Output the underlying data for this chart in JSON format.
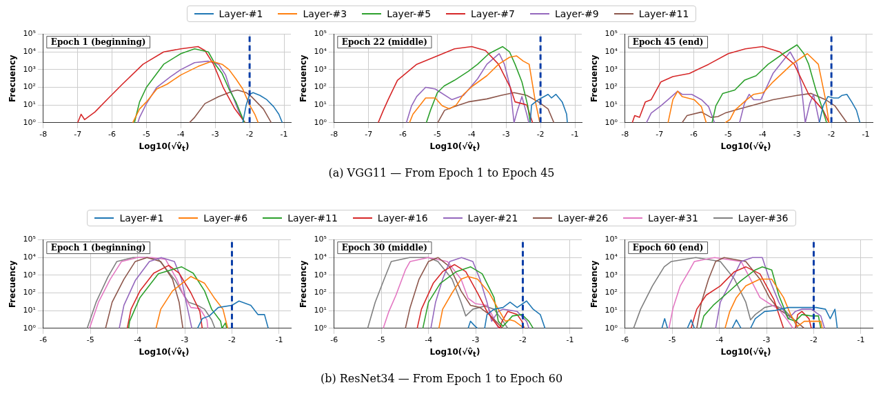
{
  "chart_data": [
    {
      "type": "line",
      "title": "Epoch 1 (beginning)",
      "xlabel": "Log10(√v̂$_{t}$)",
      "ylabel": "Frecuency",
      "log": true,
      "grid": true,
      "xlim": [
        -8,
        -0.8
      ],
      "xticks": [
        -8,
        -7,
        -6,
        -5,
        -4,
        -3,
        -2,
        -1
      ],
      "ylim": [
        1,
        100000
      ],
      "yticks": [
        {
          "value": 1,
          "label": "10⁰"
        },
        {
          "value": 10,
          "label": "10¹"
        },
        {
          "value": 100,
          "label": "10²"
        },
        {
          "value": 1000,
          "label": "10³"
        },
        {
          "value": 10000,
          "label": "10⁴"
        },
        {
          "value": 100000,
          "label": "10⁵"
        }
      ],
      "ref_lines": [
        {
          "axis": "x",
          "value": -2,
          "color": "#0a3ea8",
          "line_style": "dashed"
        }
      ],
      "annotations": [
        "(a) VGG11 — From Epoch 1 to Epoch 45"
      ],
      "series": [
        {
          "color": "#1f77b4",
          "x": [
            -2.2,
            -2.1,
            -2.0,
            -1.9,
            -1.7,
            -1.5,
            -1.3,
            -1.15,
            -1.05
          ],
          "values": [
            1,
            10,
            40,
            50,
            35,
            20,
            8,
            3,
            1
          ]
        },
        {
          "color": "#ff7f0e",
          "x": [
            -5.4,
            -5.2,
            -5.0,
            -4.7,
            -4.4,
            -4.0,
            -3.5,
            -3.1,
            -2.8,
            -2.6,
            -2.4,
            -2.2,
            -2.0,
            -1.85,
            -1.75
          ],
          "values": [
            1,
            6,
            15,
            80,
            150,
            500,
            1500,
            3000,
            2000,
            1000,
            300,
            80,
            10,
            3,
            1
          ]
        },
        {
          "color": "#2ca02c",
          "x": [
            -5.35,
            -5.2,
            -5.0,
            -4.7,
            -4.5,
            -4.0,
            -3.6,
            -3.2,
            -3.0,
            -2.8,
            -2.6,
            -2.4,
            -2.25,
            -2.15
          ],
          "values": [
            1,
            15,
            100,
            600,
            2000,
            8000,
            15000,
            10000,
            2000,
            600,
            80,
            15,
            3,
            1
          ]
        },
        {
          "color": "#d62728",
          "x": [
            -7.0,
            -6.9,
            -6.8,
            -6.5,
            -6.1,
            -5.7,
            -5.1,
            -4.5,
            -4.0,
            -3.5,
            -3.3,
            -3.05,
            -2.77,
            -2.43,
            -2.13
          ],
          "values": [
            1,
            3,
            1.5,
            4,
            25,
            150,
            2000,
            10000,
            15000,
            20000,
            12000,
            2000,
            100,
            6,
            1
          ]
        },
        {
          "color": "#9467bd",
          "x": [
            -5.25,
            -5.2,
            -5.0,
            -4.7,
            -4.3,
            -4.0,
            -3.6,
            -3.2,
            -2.9,
            -2.7,
            -2.57,
            -2.33,
            -2.16
          ],
          "values": [
            1,
            2,
            12,
            100,
            400,
            1000,
            2500,
            3000,
            2000,
            500,
            80,
            5,
            1
          ]
        },
        {
          "color": "#8c564b",
          "x": [
            -3.75,
            -3.6,
            -3.3,
            -2.9,
            -2.5,
            -2.35,
            -2.1,
            -1.95,
            -1.6,
            -1.37
          ],
          "values": [
            1,
            2,
            12,
            30,
            60,
            70,
            50,
            30,
            6,
            1
          ]
        }
      ]
    },
    {
      "type": "line",
      "title": "Epoch 22 (middle)",
      "xlabel": "Log10(√v̂$_{t}$)",
      "ylabel": "Frecuency",
      "legend": "top",
      "log": true,
      "grid": true,
      "xlim": [
        -8,
        -0.8
      ],
      "xticks": [
        -8,
        -7,
        -6,
        -5,
        -4,
        -3,
        -2,
        -1
      ],
      "ylim": [
        1,
        100000
      ],
      "yticks": [
        {
          "value": 1,
          "label": "10⁰"
        },
        {
          "value": 10,
          "label": "10¹"
        },
        {
          "value": 100,
          "label": "10²"
        },
        {
          "value": 1000,
          "label": "10³"
        },
        {
          "value": 10000,
          "label": "10⁴"
        },
        {
          "value": 100000,
          "label": "10⁵"
        }
      ],
      "ref_lines": [
        {
          "axis": "x",
          "value": -2,
          "color": "#0a3ea8",
          "line_style": "dashed"
        }
      ],
      "series": [
        {
          "name": "Layer-#1",
          "color": "#1f77b4",
          "x": [
            -2.3,
            -2.26,
            -2.06,
            -1.78,
            -1.68,
            -1.55,
            -1.37,
            -1.24,
            -1.22
          ],
          "values": [
            1,
            10,
            20,
            40,
            25,
            40,
            15,
            3,
            1
          ]
        },
        {
          "name": "Layer-#3",
          "color": "#ff7f0e",
          "x": [
            -5.81,
            -5.71,
            -5.54,
            -5.34,
            -5.06,
            -4.86,
            -4.65,
            -4.45,
            -4.24,
            -3.97,
            -3.56,
            -3.22,
            -2.9,
            -2.7,
            -2.5,
            -2.33,
            -2.16,
            -2.02
          ],
          "values": [
            1,
            3,
            8,
            25,
            25,
            9,
            6,
            10,
            40,
            120,
            450,
            2000,
            5000,
            6000,
            3000,
            2000,
            20,
            1
          ]
        },
        {
          "name": "Layer-#5",
          "color": "#2ca02c",
          "x": [
            -5.32,
            -5.2,
            -5.0,
            -4.8,
            -4.5,
            -4.1,
            -3.83,
            -3.5,
            -3.1,
            -2.9,
            -2.74,
            -2.54,
            -2.37,
            -2.3
          ],
          "values": [
            1,
            5,
            50,
            120,
            250,
            800,
            2000,
            8000,
            20000,
            10000,
            2000,
            200,
            9,
            1
          ]
        },
        {
          "name": "Layer-#7",
          "color": "#d62728",
          "x": [
            -6.72,
            -6.57,
            -6.43,
            -6.16,
            -5.6,
            -5.0,
            -4.5,
            -4.0,
            -3.6,
            -3.22,
            -2.88,
            -2.74,
            -2.54,
            -2.4,
            -2.23
          ],
          "values": [
            1,
            5,
            20,
            250,
            2000,
            6000,
            15000,
            20000,
            12000,
            2000,
            100,
            15,
            12,
            10,
            1
          ]
        },
        {
          "name": "Layer-#9",
          "color": "#9467bd",
          "x": [
            -5.9,
            -5.75,
            -5.6,
            -5.34,
            -5.06,
            -4.58,
            -4.24,
            -3.83,
            -3.56,
            -3.2,
            -3.05,
            -2.88,
            -2.77,
            -2.67,
            -2.54,
            -2.4,
            -2.34
          ],
          "values": [
            1,
            9,
            30,
            100,
            80,
            20,
            35,
            300,
            2000,
            8000,
            2000,
            100,
            1,
            5,
            30,
            3,
            1
          ]
        },
        {
          "name": "Layer-#11",
          "color": "#8c564b",
          "x": [
            -4.99,
            -4.79,
            -4.52,
            -4.1,
            -3.56,
            -3.15,
            -2.77,
            -2.4,
            -2.06,
            -1.78,
            -1.61
          ],
          "values": [
            1,
            5,
            8,
            15,
            22,
            35,
            50,
            35,
            15,
            6,
            1
          ]
        }
      ]
    },
    {
      "type": "line",
      "title": "Epoch 45 (end)",
      "xlabel": "Log10(√v̂$_{t}$)",
      "ylabel": "Frecuency",
      "log": true,
      "grid": true,
      "xlim": [
        -8,
        -0.8
      ],
      "xticks": [
        -8,
        -7,
        -6,
        -5,
        -4,
        -3,
        -2,
        -1
      ],
      "ylim": [
        1,
        100000
      ],
      "yticks": [
        {
          "value": 1,
          "label": "10⁰"
        },
        {
          "value": 10,
          "label": "10¹"
        },
        {
          "value": 100,
          "label": "10²"
        },
        {
          "value": 1000,
          "label": "10³"
        },
        {
          "value": 10000,
          "label": "10⁴"
        },
        {
          "value": 100000,
          "label": "10⁵"
        }
      ],
      "ref_lines": [
        {
          "axis": "x",
          "value": -2,
          "color": "#0a3ea8",
          "line_style": "dashed"
        }
      ],
      "series": [
        {
          "color": "#1f77b4",
          "x": [
            -2.35,
            -2.24,
            -2.1,
            -1.93,
            -1.79,
            -1.69,
            -1.55,
            -1.41,
            -1.27,
            -1.17
          ],
          "values": [
            1,
            9,
            30,
            25,
            25,
            35,
            40,
            15,
            5,
            1
          ]
        },
        {
          "color": "#ff7f0e",
          "x": [
            -6.75,
            -6.61,
            -6.47,
            -6.34,
            -5.99,
            -5.78,
            -5.64,
            -5.4,
            -5.09,
            -4.95,
            -4.81,
            -4.46,
            -4.26,
            -3.98,
            -3.7,
            -3.15,
            -2.7,
            -2.38,
            -2.17,
            -2.07
          ],
          "values": [
            1,
            20,
            60,
            30,
            20,
            8,
            1,
            null,
            1,
            1.5,
            5,
            20,
            40,
            50,
            200,
            2000,
            8000,
            2000,
            20,
            1
          ]
        },
        {
          "color": "#2ca02c",
          "x": [
            -5.47,
            -5.36,
            -5.16,
            -4.81,
            -4.53,
            -4.19,
            -3.84,
            -3.4,
            -3.0,
            -2.8,
            -2.66,
            -2.45,
            -2.31,
            -2.14
          ],
          "values": [
            1,
            9,
            45,
            70,
            250,
            450,
            2000,
            8000,
            25000,
            8000,
            2000,
            70,
            12,
            1
          ]
        },
        {
          "color": "#d62728",
          "x": [
            -7.79,
            -7.72,
            -7.58,
            -7.41,
            -7.24,
            -6.96,
            -6.61,
            -6.13,
            -5.57,
            -5.0,
            -4.5,
            -4.0,
            -3.5,
            -3.08,
            -2.66,
            -2.45,
            -2.24,
            -2.07
          ],
          "values": [
            1,
            2.5,
            2,
            15,
            20,
            200,
            400,
            600,
            2000,
            8000,
            15000,
            20000,
            10000,
            2000,
            40,
            15,
            5,
            1
          ]
        },
        {
          "color": "#9467bd",
          "x": [
            -7.38,
            -7.24,
            -6.96,
            -6.75,
            -6.47,
            -6.34,
            -6.06,
            -5.78,
            -5.57,
            -5.4,
            -5.0,
            -4.67,
            -4.53,
            -4.39,
            -4.26,
            -4.05,
            -3.7,
            -3.49,
            -3.2,
            -3.0,
            -2.87,
            -2.76,
            -2.63,
            -2.52,
            -2.38,
            -2.35
          ],
          "values": [
            1,
            3.5,
            9,
            20,
            60,
            40,
            40,
            20,
            8,
            1,
            null,
            1,
            12,
            40,
            20,
            20,
            600,
            2000,
            10000,
            2000,
            100,
            1,
            12,
            40,
            2,
            1
          ]
        },
        {
          "color": "#8c564b",
          "x": [
            -6.34,
            -6.2,
            -5.78,
            -5.5,
            -5.3,
            -5.09,
            -4.67,
            -4.26,
            -3.7,
            -3.0,
            -2.59,
            -2.17,
            -1.9,
            -1.55
          ],
          "values": [
            1,
            2.5,
            4,
            2,
            2.2,
            3.5,
            6,
            10,
            20,
            35,
            45,
            20,
            9,
            1
          ]
        }
      ]
    },
    {
      "type": "line",
      "title": "Epoch 1 (beginning)",
      "xlabel": "Log10(√v̂$_{t}$)",
      "ylabel": "Frecuency",
      "log": true,
      "grid": true,
      "xlim": [
        -6,
        -0.75
      ],
      "xticks": [
        -6,
        -5,
        -4,
        -3,
        -2,
        -1
      ],
      "ylim": [
        1,
        100000
      ],
      "yticks": [
        {
          "value": 1,
          "label": "10⁰"
        },
        {
          "value": 10,
          "label": "10¹"
        },
        {
          "value": 100,
          "label": "10²"
        },
        {
          "value": 1000,
          "label": "10³"
        },
        {
          "value": 10000,
          "label": "10⁴"
        },
        {
          "value": 100000,
          "label": "10⁵"
        }
      ],
      "ref_lines": [
        {
          "axis": "x",
          "value": -2,
          "color": "#0a3ea8",
          "line_style": "dashed"
        }
      ],
      "annotations": [
        "(b) ResNet34 — From Epoch 1 to Epoch 60"
      ],
      "series": [
        {
          "color": "#1f77b4",
          "x": [
            -2.73,
            -2.63,
            -2.48,
            -2.29,
            -2.0,
            -1.85,
            -1.6,
            -1.45,
            -1.31,
            -1.23
          ],
          "values": [
            1,
            3.5,
            5,
            15,
            20,
            35,
            20,
            6,
            6,
            1
          ]
        },
        {
          "color": "#ff7f0e",
          "x": [
            -3.61,
            -3.51,
            -3.26,
            -2.87,
            -2.58,
            -2.38,
            -2.19,
            -2.09
          ],
          "values": [
            1,
            12,
            130,
            850,
            350,
            55,
            12,
            1
          ]
        },
        {
          "color": "#2ca02c",
          "x": [
            -4.19,
            -4.17,
            -3.95,
            -3.56,
            -3.07,
            -2.82,
            -2.58,
            -2.43,
            -2.24,
            -2.21,
            -2.14,
            -2.11
          ],
          "values": [
            1,
            2.5,
            55,
            1200,
            3000,
            1300,
            130,
            12,
            2.5,
            1,
            2,
            1
          ]
        },
        {
          "color": "#d62728",
          "x": [
            -4.22,
            -4.14,
            -3.95,
            -3.66,
            -3.34,
            -3.12,
            -2.87,
            -2.68,
            -2.63
          ],
          "values": [
            1,
            12,
            130,
            1300,
            3600,
            1300,
            100,
            9,
            1
          ]
        },
        {
          "color": "#9467bd",
          "x": [
            -4.39,
            -4.29,
            -4.05,
            -3.75,
            -3.5,
            -3.22,
            -3.07,
            -2.97,
            -2.85
          ],
          "values": [
            1,
            20,
            500,
            6000,
            10000,
            6000,
            600,
            30,
            1
          ]
        },
        {
          "color": "#8c564b",
          "x": [
            -4.68,
            -4.54,
            -4.29,
            -4.05,
            -3.8,
            -3.51,
            -3.26,
            -3.12,
            -3.04
          ],
          "values": [
            1,
            30,
            600,
            6000,
            10000,
            6000,
            600,
            30,
            1
          ]
        },
        {
          "color": "#e377c2",
          "x": [
            -5.02,
            -4.83,
            -4.58,
            -4.34,
            -4.0,
            -3.7,
            -3.41,
            -3.17,
            -3.02,
            -2.87,
            -2.68,
            -2.53,
            -2.51
          ],
          "values": [
            1,
            30,
            600,
            6000,
            10000,
            10000,
            8000,
            600,
            70,
            15,
            13,
            3,
            1
          ]
        },
        {
          "color": "#7f7f7f",
          "x": [
            -5.07,
            -4.88,
            -4.63,
            -4.44,
            -4.1,
            -3.8,
            -3.56,
            -3.2,
            -3.07,
            -2.92,
            -2.73,
            -2.58,
            -2.43,
            -2.36
          ],
          "values": [
            1,
            30,
            800,
            6000,
            10000,
            10000,
            8000,
            500,
            120,
            30,
            20,
            12,
            3,
            1
          ]
        }
      ]
    },
    {
      "type": "line",
      "title": "Epoch 30 (middle)",
      "xlabel": "Log10(√v̂$_{t}$)",
      "ylabel": "Frecuency",
      "legend": "top",
      "log": true,
      "grid": true,
      "xlim": [
        -6,
        -0.75
      ],
      "xticks": [
        -6,
        -5,
        -4,
        -3,
        -2,
        -1
      ],
      "ylim": [
        1,
        100000
      ],
      "yticks": [
        {
          "value": 1,
          "label": "10⁰"
        },
        {
          "value": 10,
          "label": "10¹"
        },
        {
          "value": 100,
          "label": "10²"
        },
        {
          "value": 1000,
          "label": "10³"
        },
        {
          "value": 10000,
          "label": "10⁴"
        },
        {
          "value": 100000,
          "label": "10⁵"
        }
      ],
      "ref_lines": [
        {
          "axis": "x",
          "value": -2,
          "color": "#0a3ea8",
          "line_style": "dashed"
        }
      ],
      "series": [
        {
          "name": "Layer-#1",
          "color": "#1f77b4",
          "x": [
            -3.16,
            -3.11,
            -3.01,
            -2.96,
            -2.9,
            -2.81,
            -2.76,
            -2.61,
            -2.42,
            -2.27,
            -2.12,
            -1.92,
            -1.78,
            -1.63,
            -1.53
          ],
          "values": [
            1,
            2.5,
            1.3,
            1,
            null,
            1,
            6,
            12,
            15,
            30,
            15,
            35,
            12,
            6,
            1
          ]
        },
        {
          "name": "Layer-#6",
          "color": "#ff7f0e",
          "x": [
            -3.78,
            -3.7,
            -3.5,
            -3.31,
            -3.16,
            -2.96,
            -2.71,
            -2.52,
            -2.37,
            -2.27,
            -2.17,
            -2.07,
            -1.97
          ],
          "values": [
            1,
            12,
            100,
            600,
            850,
            600,
            100,
            12,
            2.5,
            3,
            2.5,
            1.6,
            1
          ]
        },
        {
          "name": "Layer-#11",
          "color": "#2ca02c",
          "x": [
            -4.12,
            -4.0,
            -3.75,
            -3.41,
            -3.11,
            -2.86,
            -2.61,
            -2.52,
            -2.42,
            -2.22,
            -2.02,
            -1.87,
            -1.78
          ],
          "values": [
            1,
            30,
            350,
            1600,
            3000,
            1200,
            55,
            2.5,
            1.3,
            5,
            6,
            2.5,
            1
          ]
        },
        {
          "name": "Layer-#16",
          "color": "#d62728",
          "x": [
            -4.24,
            -4.15,
            -3.9,
            -3.7,
            -3.45,
            -3.21,
            -2.96,
            -2.76,
            -2.61,
            -2.49,
            -2.44,
            -2.32,
            -2.12,
            -2.02,
            -1.97
          ],
          "values": [
            1,
            12,
            350,
            1600,
            4000,
            1600,
            100,
            9,
            2.5,
            1,
            2.5,
            9,
            6,
            2.5,
            1
          ]
        },
        {
          "name": "Layer-#21",
          "color": "#9467bd",
          "x": [
            -3.95,
            -3.85,
            -3.7,
            -3.55,
            -3.3,
            -3.06,
            -2.91,
            -2.76,
            -2.66,
            -2.52,
            -2.42,
            -2.12,
            -1.92,
            -1.87
          ],
          "values": [
            1,
            30,
            600,
            6000,
            10000,
            6000,
            600,
            30,
            2.5,
            9,
            12,
            9,
            2.5,
            1
          ]
        },
        {
          "name": "Layer-#26",
          "color": "#8c564b",
          "x": [
            -4.49,
            -4.39,
            -4.2,
            -4.0,
            -3.8,
            -3.55,
            -3.31,
            -3.11,
            -2.91,
            -2.71,
            -2.47,
            -2.42
          ],
          "values": [
            1,
            15,
            600,
            6000,
            10000,
            3000,
            130,
            20,
            15,
            6,
            1.3,
            1
          ]
        },
        {
          "name": "Layer-#31",
          "color": "#e377c2",
          "x": [
            -4.96,
            -4.84,
            -4.69,
            -4.49,
            -4.39,
            -4.0,
            -3.6,
            -3.31,
            -3.16,
            -3.01,
            -2.76,
            -2.61,
            -2.52
          ],
          "values": [
            1,
            9,
            75,
            2000,
            6000,
            10000,
            6000,
            600,
            50,
            25,
            20,
            3.5,
            1
          ]
        },
        {
          "name": "Layer-#36",
          "color": "#7f7f7f",
          "x": [
            -5.29,
            -5.13,
            -4.94,
            -4.79,
            -4.4,
            -4.0,
            -3.8,
            -3.5,
            -3.31,
            -3.21,
            -3.06,
            -2.81,
            -2.61,
            -2.42,
            -2.32
          ],
          "values": [
            1,
            30,
            600,
            6000,
            10000,
            10000,
            6000,
            600,
            30,
            5,
            12,
            18,
            12,
            2.5,
            1
          ]
        }
      ]
    },
    {
      "type": "line",
      "title": "Epoch 60 (end)",
      "xlabel": "Log10(√v̂$_{t}$)",
      "ylabel": "Frecuency",
      "log": true,
      "grid": true,
      "xlim": [
        -6,
        -0.75
      ],
      "xticks": [
        -6,
        -5,
        -4,
        -3,
        -2,
        -1
      ],
      "ylim": [
        1,
        100000
      ],
      "yticks": [
        {
          "value": 1,
          "label": "10⁰"
        },
        {
          "value": 10,
          "label": "10¹"
        },
        {
          "value": 100,
          "label": "10²"
        },
        {
          "value": 1000,
          "label": "10³"
        },
        {
          "value": 10000,
          "label": "10⁴"
        },
        {
          "value": 100000,
          "label": "10⁵"
        }
      ],
      "ref_lines": [
        {
          "axis": "x",
          "value": -2,
          "color": "#0a3ea8",
          "line_style": "dashed"
        }
      ],
      "series": [
        {
          "color": "#1f77b4",
          "x": [
            -5.22,
            -5.16,
            -5.1,
            -5.0,
            -4.68,
            -4.6,
            -4.53,
            -4.0,
            -3.73,
            -3.64,
            -3.54,
            -3.45,
            -3.34,
            -3.24,
            -3.04,
            -2.84,
            -2.54,
            -2.25,
            -1.95,
            -1.75,
            -1.65,
            -1.55,
            -1.5
          ],
          "values": [
            1,
            3.5,
            1,
            null,
            1,
            3,
            1,
            null,
            1,
            3,
            1,
            null,
            1,
            3.5,
            9,
            10,
            15,
            15,
            15,
            12,
            3.5,
            12,
            1
          ]
        },
        {
          "color": "#ff7f0e",
          "x": [
            -3.88,
            -3.78,
            -3.64,
            -3.44,
            -3.14,
            -2.89,
            -2.64,
            -2.49,
            -2.34,
            -2.2,
            -2.0,
            -1.85,
            -1.82
          ],
          "values": [
            1,
            9,
            55,
            250,
            600,
            600,
            55,
            6,
            1.3,
            2.5,
            2.5,
            2.5,
            1
          ]
        },
        {
          "color": "#2ca02c",
          "x": [
            -4.4,
            -4.33,
            -4.13,
            -3.83,
            -3.54,
            -3.24,
            -3.09,
            -2.89,
            -2.74,
            -2.54,
            -2.39,
            -2.25,
            -2.05,
            -1.9,
            -1.85
          ],
          "values": [
            1,
            5,
            20,
            100,
            500,
            2000,
            3000,
            2000,
            75,
            3.5,
            2.5,
            6,
            5,
            5,
            1
          ]
        },
        {
          "color": "#d62728",
          "x": [
            -4.6,
            -4.48,
            -4.28,
            -3.98,
            -3.68,
            -3.44,
            -3.14,
            -2.84,
            -2.69,
            -2.64,
            -2.5,
            -2.39,
            -2.34,
            -2.25,
            -2.1,
            -2.05
          ],
          "values": [
            1,
            12,
            75,
            250,
            1600,
            3000,
            1200,
            40,
            2.5,
            1,
            null,
            1,
            6,
            9,
            3.5,
            1
          ]
        },
        {
          "color": "#9467bd",
          "x": [
            -4.08,
            -3.98,
            -3.73,
            -3.54,
            -3.3,
            -3.09,
            -2.94,
            -2.74,
            -2.54,
            -2.39,
            -2.25,
            -2.05,
            -1.85,
            -1.77
          ],
          "values": [
            1,
            30,
            600,
            6000,
            10000,
            10000,
            600,
            30,
            3.5,
            9,
            12,
            12,
            5,
            1
          ]
        },
        {
          "color": "#8c564b",
          "x": [
            -4.48,
            -4.38,
            -4.23,
            -4.08,
            -3.9,
            -3.44,
            -3.14,
            -2.94,
            -2.74,
            -2.44,
            -2.25,
            -2.2
          ],
          "values": [
            1,
            30,
            600,
            6000,
            10000,
            6000,
            600,
            55,
            12,
            3.5,
            1.3,
            1
          ]
        },
        {
          "color": "#e377c2",
          "x": [
            -5.07,
            -4.98,
            -4.83,
            -4.63,
            -4.53,
            -4.1,
            -3.54,
            -3.34,
            -3.14,
            -2.94,
            -2.74,
            -2.54,
            -2.44
          ],
          "values": [
            1,
            15,
            250,
            2000,
            6000,
            10000,
            6000,
            600,
            55,
            25,
            12,
            2.5,
            1
          ]
        },
        {
          "color": "#7f7f7f",
          "x": [
            -5.82,
            -5.67,
            -5.42,
            -5.17,
            -5.02,
            -4.5,
            -3.98,
            -3.68,
            -3.44,
            -3.34,
            -3.24,
            -3.04,
            -2.84,
            -2.64,
            -2.44,
            -2.34
          ],
          "values": [
            1,
            12,
            250,
            3000,
            6000,
            10000,
            6000,
            600,
            30,
            3,
            6,
            15,
            20,
            12,
            3.5,
            1
          ]
        }
      ]
    }
  ]
}
